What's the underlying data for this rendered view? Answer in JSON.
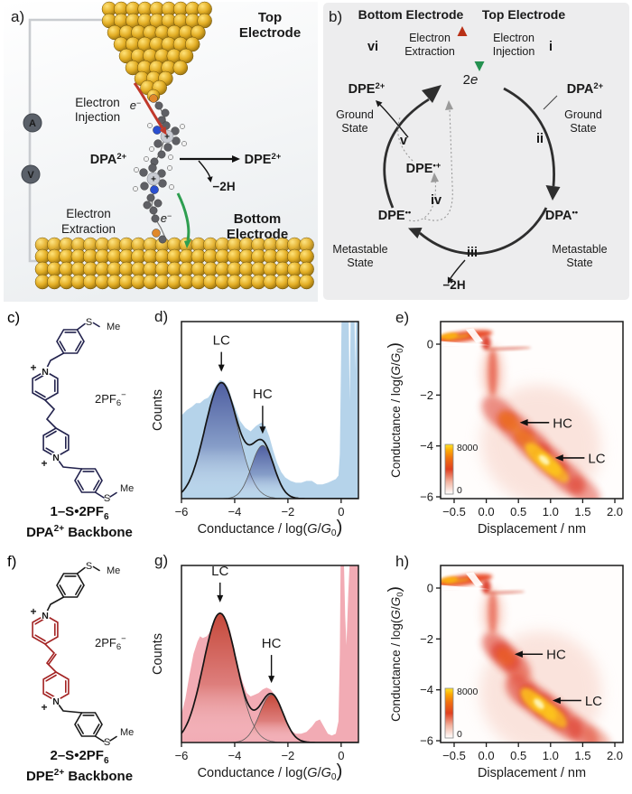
{
  "panel_a": {
    "label": "a)",
    "top_electrode": [
      "Top",
      "Electrode"
    ],
    "bottom_electrode": [
      "Bottom",
      "Electrode"
    ],
    "injection": [
      "Electron",
      "Injection"
    ],
    "extraction": [
      "Electron",
      "Extraction"
    ],
    "electron_base": "e",
    "electron_sup": "−",
    "ammeter": "A",
    "voltmeter": "V",
    "dpa": {
      "base": "DPA",
      "sup": "2+",
      "color": "#1d2a6b"
    },
    "dpe": {
      "base": "DPE",
      "sup": "2+",
      "color": "#b01f1f"
    },
    "minus_2h": "−2H"
  },
  "panel_b": {
    "label": "b)",
    "bottom_electrode": "Bottom Electrode",
    "top_electrode": "Top Electrode",
    "extraction": [
      "Electron",
      "Extraction"
    ],
    "injection": [
      "Electron",
      "Injection"
    ],
    "steps": {
      "i": "i",
      "ii": "ii",
      "iii": "iii",
      "iv": "iv",
      "v": "v",
      "vi": "vi"
    },
    "two_e": {
      "num": "2",
      "e": "e"
    },
    "species": {
      "dpe_ground": {
        "base": "DPE",
        "sup": "2+",
        "color": "#a41e1e"
      },
      "dpa_ground": {
        "base": "DPA",
        "sup": "2+",
        "color": "#1d2a6b"
      },
      "dpe_radical_cation": {
        "base": "DPE",
        "sup": "•+",
        "color": "#8a2d8f"
      },
      "dpe_metastable": {
        "base": "DPE",
        "sup": "••",
        "color": "#dd8b28"
      },
      "dpa_metastable": {
        "base": "DPA",
        "sup": "••",
        "color": "#dd8b28"
      }
    },
    "ground_state": [
      "Ground",
      "State"
    ],
    "metastable_state": [
      "Metastable",
      "State"
    ],
    "minus_2h": "−2H"
  },
  "panel_c": {
    "label": "c)",
    "atoms": {
      "s": "S",
      "me": "Me",
      "n": "N",
      "plus": "+"
    },
    "counter_ion": {
      "pre": "2PF",
      "sub": "6",
      "sup": "−"
    },
    "name": {
      "bold": "1–S",
      "rest": "•2PF",
      "sub": "6"
    },
    "backbone": {
      "bold": "DPA",
      "sup": "2+",
      "rest": " Backbone"
    },
    "color": "#22224d"
  },
  "panel_f": {
    "label": "f)",
    "atoms": {
      "s": "S",
      "me": "Me",
      "n": "N",
      "plus": "+"
    },
    "counter_ion": {
      "pre": "2PF",
      "sub": "6",
      "sup": "−"
    },
    "name": {
      "bold": "2–S",
      "rest": "•2PF",
      "sub": "6"
    },
    "backbone": {
      "bold": "DPE",
      "sup": "2+",
      "rest": " Backbone"
    },
    "color": "#a32222"
  },
  "labels": {
    "counts": "Counts",
    "displacement": "Displacement / nm",
    "conductance_parts": {
      "pre": "Conductance / log(",
      "g": "G",
      "slash": "/",
      "sub": "0",
      "post": ")"
    }
  },
  "chart_data": [
    {
      "id": "d",
      "panel_label": "d)",
      "type": "histogram",
      "xlabel": "Conductance / log(G/G0)",
      "ylabel": "Counts",
      "xlim": [
        -6,
        0.65
      ],
      "xticks": [
        -6,
        -4,
        -2,
        0
      ],
      "xtick_labels": [
        "−6",
        "−4",
        "−2",
        "0"
      ],
      "hist_fill": "#b5d3ea",
      "fit_color": "#46549a",
      "curve_color": "#141414",
      "peaks": [
        {
          "name": "LC",
          "center": -4.5,
          "sigma": 0.62,
          "height": 0.655
        },
        {
          "name": "HC",
          "center": -2.95,
          "sigma": 0.42,
          "height": 0.3
        }
      ],
      "envelope": [
        [
          -6,
          0.47
        ],
        [
          -5.8,
          0.5
        ],
        [
          -5.6,
          0.52
        ],
        [
          -5.45,
          0.54
        ],
        [
          -5.3,
          0.54
        ],
        [
          -5.15,
          0.56
        ],
        [
          -5,
          0.57
        ],
        [
          -4.85,
          0.6
        ],
        [
          -4.7,
          0.64
        ],
        [
          -4.55,
          0.67
        ],
        [
          -4.4,
          0.66
        ],
        [
          -4.25,
          0.63
        ],
        [
          -4.1,
          0.56
        ],
        [
          -3.95,
          0.5
        ],
        [
          -3.8,
          0.44
        ],
        [
          -3.6,
          0.4
        ],
        [
          -3.4,
          0.38
        ],
        [
          -3.2,
          0.41
        ],
        [
          -3,
          0.43
        ],
        [
          -2.85,
          0.41
        ],
        [
          -2.7,
          0.35
        ],
        [
          -2.55,
          0.27
        ],
        [
          -2.4,
          0.2
        ],
        [
          -2.25,
          0.15
        ],
        [
          -2.1,
          0.12
        ],
        [
          -1.9,
          0.1
        ],
        [
          -1.7,
          0.09
        ],
        [
          -1.5,
          0.09
        ],
        [
          -1.3,
          0.1
        ],
        [
          -1.1,
          0.1
        ],
        [
          -0.9,
          0.08
        ],
        [
          -0.7,
          0.08
        ],
        [
          -0.5,
          0.09
        ],
        [
          -0.35,
          0.1
        ],
        [
          -0.2,
          0.11
        ],
        [
          -0.1,
          0.13
        ],
        [
          -0.05,
          0.25
        ],
        [
          0,
          0.8
        ],
        [
          0.02,
          1.05
        ],
        [
          0.28,
          1.05
        ],
        [
          0.32,
          0.55
        ],
        [
          0.36,
          1.05
        ],
        [
          0.5,
          1.05
        ],
        [
          0.53,
          0.72
        ],
        [
          0.56,
          1.05
        ],
        [
          0.65,
          1.05
        ]
      ]
    },
    {
      "id": "e",
      "panel_label": "e)",
      "type": "heatmap",
      "xlabel": "Displacement / nm",
      "ylabel": "Conductance / log(G/G0)",
      "xticks": [
        -0.5,
        0,
        0.5,
        1,
        1.5,
        2
      ],
      "xtick_labels": [
        "−0.5",
        "0.0",
        "0.5",
        "1.0",
        "1.5",
        "2.0"
      ],
      "yticks": [
        0,
        -2,
        -4,
        -6
      ],
      "ytick_labels": [
        "0",
        "−2",
        "−4",
        "−6"
      ],
      "colorbar": {
        "max": "8000",
        "min": "0"
      },
      "annotations": [
        {
          "text": "HC",
          "tip": [
            0.52,
            -3.08
          ],
          "text_at": [
            0.95,
            -3.08
          ]
        },
        {
          "text": "LC",
          "tip": [
            1.07,
            -4.47
          ],
          "text_at": [
            1.5,
            -4.47
          ]
        }
      ],
      "blobs": [
        [
          0.85,
          -3.95,
          0.95,
          2.3,
          42,
          "#f6cabd",
          0.5,
          8
        ],
        [
          0.1,
          -1.15,
          0.17,
          1.05,
          0,
          "#ef7a5a",
          0.35,
          5
        ],
        [
          0.1,
          -1.1,
          0.07,
          0.95,
          0,
          "#e0341c",
          0.6,
          3
        ],
        [
          0.2,
          -2.7,
          0.32,
          0.5,
          42,
          "#dc2f1b",
          0.5,
          4
        ],
        [
          0.46,
          -3.3,
          0.32,
          0.5,
          42,
          "#dc2f1b",
          0.55,
          4
        ],
        [
          0.72,
          -3.95,
          0.33,
          0.52,
          42,
          "#dc2f1b",
          0.6,
          4
        ],
        [
          0.98,
          -4.6,
          0.34,
          0.52,
          42,
          "#dc2f1b",
          0.6,
          4
        ],
        [
          1.26,
          -5.25,
          0.33,
          0.5,
          42,
          "#dc2f1b",
          0.55,
          4
        ],
        [
          1.52,
          -5.8,
          0.3,
          0.45,
          42,
          "#dc2f1b",
          0.45,
          4
        ],
        [
          0.36,
          -3.05,
          0.2,
          0.3,
          42,
          "#f07818",
          0.65,
          3
        ],
        [
          0.62,
          -3.75,
          0.22,
          0.3,
          42,
          "#f59414",
          0.5,
          3
        ],
        [
          0.8,
          -4.35,
          0.24,
          0.3,
          42,
          "#fdc51e",
          0.85,
          2.5
        ],
        [
          0.97,
          -4.72,
          0.24,
          0.3,
          42,
          "#fdc51e",
          0.9,
          2.5
        ],
        [
          1.12,
          -5.05,
          0.2,
          0.26,
          42,
          "#fdc51e",
          0.7,
          2.5
        ],
        [
          0.9,
          -4.55,
          0.1,
          0.13,
          42,
          "#fff6b8",
          0.95,
          1.5
        ],
        [
          -0.35,
          0.3,
          0.45,
          0.2,
          -8,
          "#e8431d",
          0.92,
          2
        ],
        [
          -0.58,
          0.32,
          0.14,
          0.12,
          -8,
          "#ffb300",
          0.85,
          1.5
        ],
        [
          -0.45,
          0.28,
          0.2,
          0.08,
          -8,
          "#f5d020",
          0.5,
          1.5
        ],
        [
          0,
          0.05,
          0.07,
          0.28,
          0,
          "#d92c12",
          0.85,
          2
        ],
        [
          0.35,
          -0.17,
          0.35,
          0.05,
          -2,
          "#cc2810",
          0.55,
          1.5
        ]
      ],
      "white_cuts": [
        [
          [
            -0.72,
            0.12
          ],
          [
            0.05,
            -0.04
          ],
          [
            -0.72,
            -0.08
          ]
        ],
        [
          [
            -0.2,
            0.62
          ],
          [
            -0.05,
            0.12
          ],
          [
            -0.16,
            0.06
          ],
          [
            -0.32,
            0.58
          ]
        ]
      ]
    },
    {
      "id": "g",
      "panel_label": "g)",
      "type": "histogram",
      "xlabel": "Conductance / log(G/G0)",
      "ylabel": "Counts",
      "xlim": [
        -6,
        0.65
      ],
      "xticks": [
        -6,
        -4,
        -2,
        0
      ],
      "xtick_labels": [
        "−6",
        "−4",
        "−2",
        "0"
      ],
      "hist_fill": "#f2abb4",
      "fit_color": "#c1402f",
      "curve_color": "#141414",
      "peaks": [
        {
          "name": "LC",
          "center": -4.55,
          "sigma": 0.63,
          "height": 0.73
        },
        {
          "name": "HC",
          "center": -2.62,
          "sigma": 0.44,
          "height": 0.27
        }
      ],
      "envelope": [
        [
          -6,
          0.16
        ],
        [
          -5.85,
          0.25
        ],
        [
          -5.7,
          0.38
        ],
        [
          -5.55,
          0.5
        ],
        [
          -5.4,
          0.57
        ],
        [
          -5.3,
          0.6
        ],
        [
          -5.2,
          0.59
        ],
        [
          -5.05,
          0.6
        ],
        [
          -4.9,
          0.63
        ],
        [
          -4.75,
          0.68
        ],
        [
          -4.6,
          0.72
        ],
        [
          -4.45,
          0.73
        ],
        [
          -4.3,
          0.69
        ],
        [
          -4.15,
          0.62
        ],
        [
          -4,
          0.52
        ],
        [
          -3.85,
          0.42
        ],
        [
          -3.7,
          0.34
        ],
        [
          -3.55,
          0.28
        ],
        [
          -3.4,
          0.26
        ],
        [
          -3.25,
          0.27
        ],
        [
          -3.1,
          0.28
        ],
        [
          -2.95,
          0.3
        ],
        [
          -2.8,
          0.31
        ],
        [
          -2.65,
          0.3
        ],
        [
          -2.5,
          0.27
        ],
        [
          -2.35,
          0.22
        ],
        [
          -2.2,
          0.16
        ],
        [
          -2.05,
          0.11
        ],
        [
          -1.9,
          0.07
        ],
        [
          -1.7,
          0.05
        ],
        [
          -1.5,
          0.05
        ],
        [
          -1.3,
          0.06
        ],
        [
          -1.1,
          0.09
        ],
        [
          -0.95,
          0.12
        ],
        [
          -0.8,
          0.13
        ],
        [
          -0.65,
          0.09
        ],
        [
          -0.5,
          0.05
        ],
        [
          -0.35,
          0.04
        ],
        [
          -0.2,
          0.05
        ],
        [
          -0.1,
          0.12
        ],
        [
          -0.05,
          0.5
        ],
        [
          -0.02,
          1.05
        ],
        [
          0.1,
          1.05
        ],
        [
          0.15,
          0.72
        ],
        [
          0.2,
          0.55
        ],
        [
          0.27,
          0.85
        ],
        [
          0.33,
          1.05
        ],
        [
          0.65,
          1.05
        ]
      ]
    },
    {
      "id": "h",
      "panel_label": "h)",
      "type": "heatmap",
      "xlabel": "Displacement / nm",
      "ylabel": "Conductance / log(G/G0)",
      "xticks": [
        -0.5,
        0,
        0.5,
        1,
        1.5,
        2
      ],
      "xtick_labels": [
        "−0.5",
        "0.0",
        "0.5",
        "1.0",
        "1.5",
        "2.0"
      ],
      "yticks": [
        0,
        -2,
        -4,
        -6
      ],
      "ytick_labels": [
        "0",
        "−2",
        "−4",
        "−6"
      ],
      "colorbar": {
        "max": "8000",
        "min": "0"
      },
      "annotations": [
        {
          "text": "HC",
          "tip": [
            0.44,
            -2.6
          ],
          "text_at": [
            0.85,
            -2.6
          ]
        },
        {
          "text": "LC",
          "tip": [
            1.03,
            -4.42
          ],
          "text_at": [
            1.45,
            -4.42
          ]
        }
      ],
      "blobs": [
        [
          0.85,
          -4.1,
          0.95,
          2.4,
          45,
          "#f6cabd",
          0.5,
          8
        ],
        [
          0.1,
          -1,
          0.17,
          0.95,
          0,
          "#ef7a5a",
          0.3,
          5
        ],
        [
          0.1,
          -0.95,
          0.07,
          0.85,
          0,
          "#e0341c",
          0.55,
          3
        ],
        [
          0.15,
          -2.3,
          0.25,
          0.45,
          45,
          "#dc2f1b",
          0.55,
          4
        ],
        [
          0.3,
          -2.7,
          0.27,
          0.47,
          45,
          "#dc2f1b",
          0.6,
          4
        ],
        [
          0.47,
          -3.1,
          0.25,
          0.45,
          45,
          "#dc2f1b",
          0.5,
          4
        ],
        [
          0.3,
          -2.7,
          0.16,
          0.3,
          45,
          "#f06a18",
          0.45,
          3
        ],
        [
          0.55,
          -3.6,
          0.25,
          0.4,
          45,
          "#e85a3a",
          0.3,
          4
        ],
        [
          0.55,
          -4.05,
          0.3,
          0.5,
          45,
          "#dc2f1b",
          0.55,
          4
        ],
        [
          0.78,
          -4.45,
          0.32,
          0.52,
          45,
          "#dc2f1b",
          0.6,
          4
        ],
        [
          1,
          -4.85,
          0.33,
          0.52,
          45,
          "#dc2f1b",
          0.6,
          4
        ],
        [
          1.24,
          -5.3,
          0.32,
          0.5,
          45,
          "#dc2f1b",
          0.55,
          4
        ],
        [
          1.5,
          -5.72,
          0.3,
          0.46,
          45,
          "#dc2f1b",
          0.5,
          4
        ],
        [
          1.72,
          -5.98,
          0.26,
          0.4,
          45,
          "#e14a2c",
          0.4,
          4
        ],
        [
          0.72,
          -4.4,
          0.24,
          0.3,
          45,
          "#fdc51e",
          0.85,
          2.5
        ],
        [
          0.9,
          -4.72,
          0.25,
          0.3,
          45,
          "#fdc51e",
          0.9,
          2.5
        ],
        [
          1.08,
          -5.05,
          0.22,
          0.28,
          45,
          "#fdc51e",
          0.75,
          2.5
        ],
        [
          0.82,
          -4.55,
          0.1,
          0.13,
          45,
          "#fff6b8",
          0.95,
          1.5
        ],
        [
          -0.35,
          0.3,
          0.45,
          0.2,
          -8,
          "#e8431d",
          0.92,
          2
        ],
        [
          -0.58,
          0.32,
          0.14,
          0.12,
          -8,
          "#ffb300",
          0.85,
          1.5
        ],
        [
          -0.45,
          0.28,
          0.2,
          0.08,
          -8,
          "#f5d020",
          0.5,
          1.5
        ],
        [
          0,
          0.05,
          0.07,
          0.28,
          0,
          "#d92c12",
          0.85,
          2
        ],
        [
          0.3,
          -0.17,
          0.3,
          0.05,
          -2,
          "#cc2810",
          0.5,
          1.5
        ]
      ],
      "white_cuts": [
        [
          [
            -0.72,
            0.12
          ],
          [
            0.05,
            -0.04
          ],
          [
            -0.72,
            -0.08
          ]
        ],
        [
          [
            -0.2,
            0.62
          ],
          [
            -0.05,
            0.12
          ],
          [
            -0.16,
            0.06
          ],
          [
            -0.32,
            0.58
          ]
        ]
      ]
    }
  ]
}
